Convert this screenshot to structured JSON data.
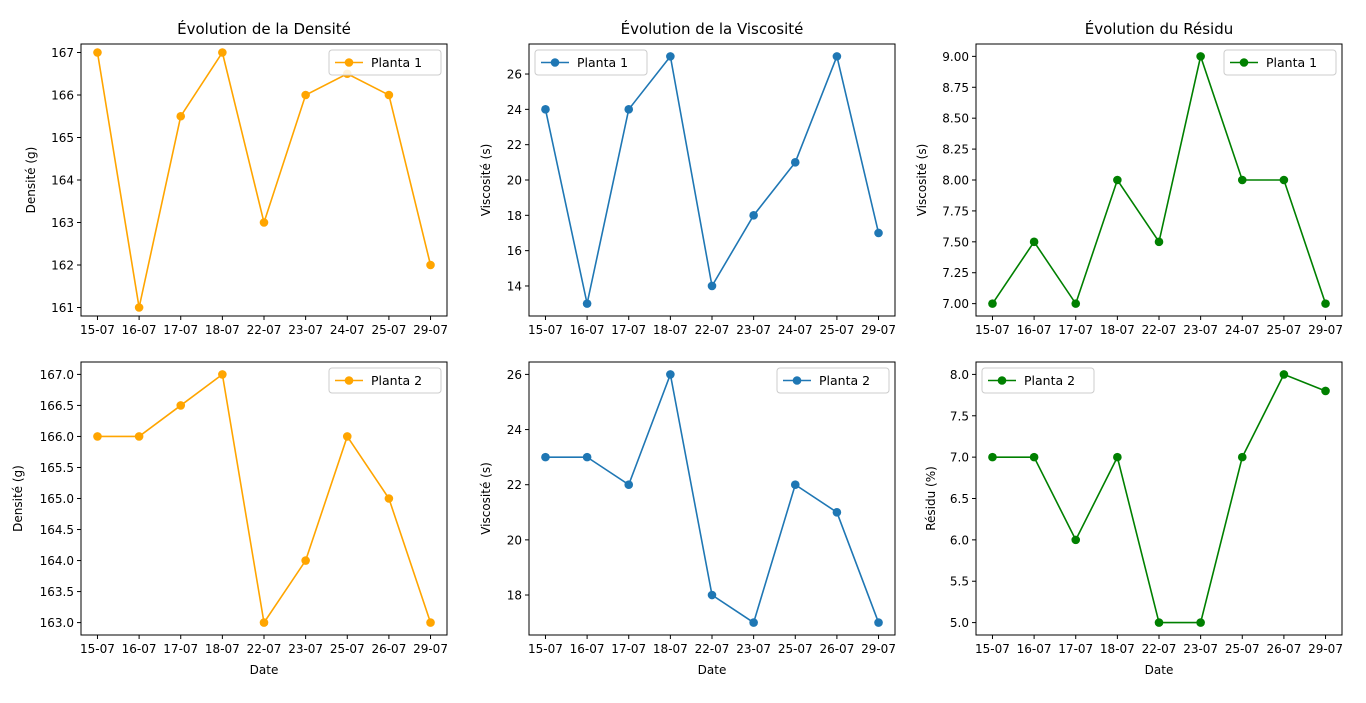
{
  "chart_data": [
    {
      "type": "line",
      "title": "Évolution de la Densité",
      "xlabel": "",
      "ylabel": "Densité (g)",
      "categories": [
        "15-07",
        "16-07",
        "17-07",
        "18-07",
        "22-07",
        "23-07",
        "24-07",
        "25-07",
        "29-07"
      ],
      "ylim": [
        160.8,
        167.2
      ],
      "yticks": [
        "161",
        "162",
        "163",
        "164",
        "165",
        "166",
        "167"
      ],
      "ytick_values": [
        161,
        162,
        163,
        164,
        165,
        166,
        167
      ],
      "legend_position": "upper right",
      "series": [
        {
          "name": "Planta 1",
          "color": "#FFA500",
          "values": [
            167,
            161,
            165.5,
            167,
            163,
            166,
            166.5,
            166,
            162
          ]
        }
      ]
    },
    {
      "type": "line",
      "title": "Évolution de la Viscosité",
      "xlabel": "",
      "ylabel": "Viscosité (s)",
      "categories": [
        "15-07",
        "16-07",
        "17-07",
        "18-07",
        "22-07",
        "23-07",
        "24-07",
        "25-07",
        "29-07"
      ],
      "ylim": [
        12.3,
        27.7
      ],
      "yticks": [
        "14",
        "16",
        "18",
        "20",
        "22",
        "24",
        "26"
      ],
      "ytick_values": [
        14,
        16,
        18,
        20,
        22,
        24,
        26
      ],
      "legend_position": "upper left",
      "series": [
        {
          "name": "Planta 1",
          "color": "#1F77B4",
          "values": [
            24,
            13,
            24,
            27,
            14,
            18,
            21,
            27,
            17
          ]
        }
      ]
    },
    {
      "type": "line",
      "title": "Évolution du Résidu",
      "xlabel": "",
      "ylabel": "Viscosité (s)",
      "categories": [
        "15-07",
        "16-07",
        "17-07",
        "18-07",
        "22-07",
        "23-07",
        "24-07",
        "25-07",
        "29-07"
      ],
      "ylim": [
        6.9,
        9.1
      ],
      "yticks": [
        "7.00",
        "7.25",
        "7.50",
        "7.75",
        "8.00",
        "8.25",
        "8.50",
        "8.75",
        "9.00"
      ],
      "ytick_values": [
        7,
        7.25,
        7.5,
        7.75,
        8,
        8.25,
        8.5,
        8.75,
        9
      ],
      "legend_position": "upper right",
      "series": [
        {
          "name": "Planta 1",
          "color": "#008000",
          "values": [
            7,
            7.5,
            7,
            8,
            7.5,
            9,
            8,
            8,
            7
          ]
        }
      ]
    },
    {
      "type": "line",
      "title": "",
      "xlabel": "Date",
      "ylabel": "Densité (g)",
      "categories": [
        "15-07",
        "16-07",
        "17-07",
        "18-07",
        "22-07",
        "23-07",
        "25-07",
        "26-07",
        "29-07"
      ],
      "ylim": [
        162.8,
        167.2
      ],
      "yticks": [
        "163.0",
        "163.5",
        "164.0",
        "164.5",
        "165.0",
        "165.5",
        "166.0",
        "166.5",
        "167.0"
      ],
      "ytick_values": [
        163,
        163.5,
        164,
        164.5,
        165,
        165.5,
        166,
        166.5,
        167
      ],
      "legend_position": "upper right",
      "series": [
        {
          "name": "Planta 2",
          "color": "#FFA500",
          "values": [
            166,
            166,
            166.5,
            167,
            163,
            164,
            166,
            165,
            163
          ]
        }
      ]
    },
    {
      "type": "line",
      "title": "",
      "xlabel": "Date",
      "ylabel": "Viscosité (s)",
      "categories": [
        "15-07",
        "16-07",
        "17-07",
        "18-07",
        "22-07",
        "23-07",
        "25-07",
        "26-07",
        "29-07"
      ],
      "ylim": [
        16.55,
        26.45
      ],
      "yticks": [
        "18",
        "20",
        "22",
        "24",
        "26"
      ],
      "ytick_values": [
        18,
        20,
        22,
        24,
        26
      ],
      "legend_position": "upper right",
      "series": [
        {
          "name": "Planta 2",
          "color": "#1F77B4",
          "values": [
            23,
            23,
            22,
            26,
            18,
            17,
            22,
            21,
            17
          ]
        }
      ]
    },
    {
      "type": "line",
      "title": "",
      "xlabel": "Date",
      "ylabel": "Résidu (%)",
      "categories": [
        "15-07",
        "16-07",
        "17-07",
        "18-07",
        "22-07",
        "23-07",
        "25-07",
        "26-07",
        "29-07"
      ],
      "ylim": [
        4.85,
        8.15
      ],
      "yticks": [
        "5.0",
        "5.5",
        "6.0",
        "6.5",
        "7.0",
        "7.5",
        "8.0"
      ],
      "ytick_values": [
        5,
        5.5,
        6,
        6.5,
        7,
        7.5,
        8
      ],
      "legend_position": "upper left",
      "series": [
        {
          "name": "Planta 2",
          "color": "#008000",
          "values": [
            7,
            7,
            6,
            7,
            5,
            5,
            7,
            8,
            7.8
          ]
        }
      ]
    }
  ]
}
